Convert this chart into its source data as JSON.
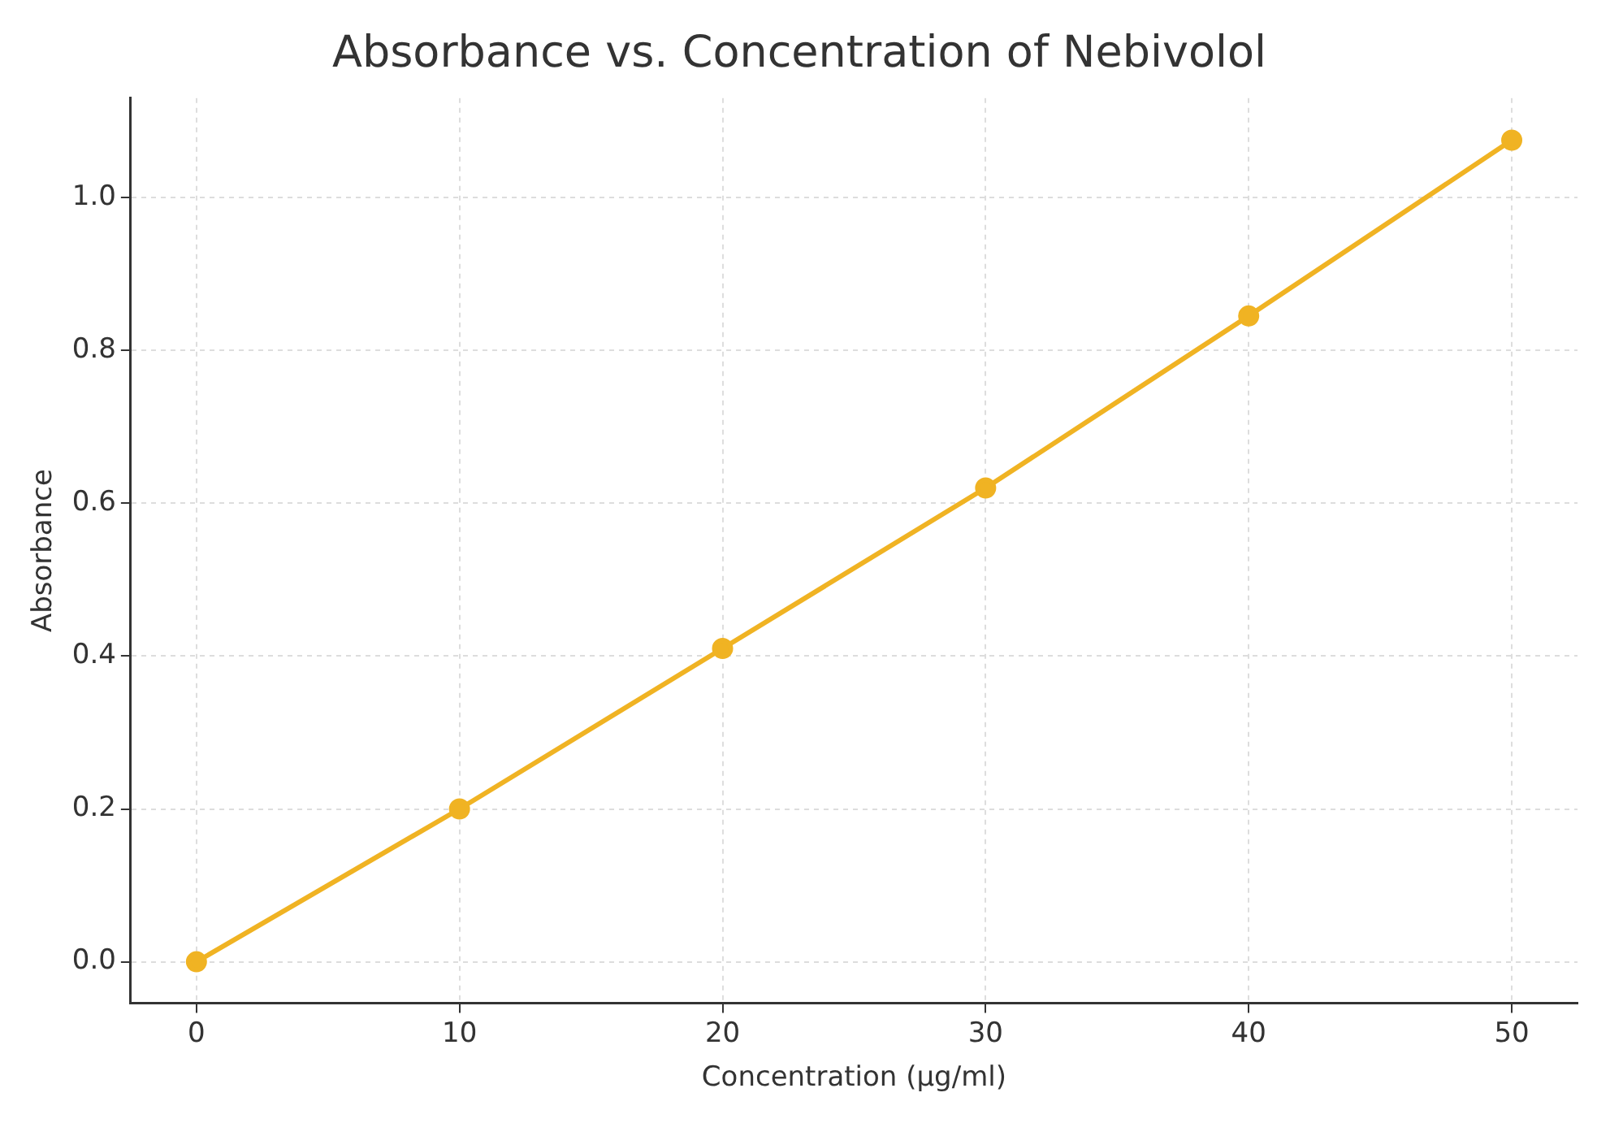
{
  "chart_data": {
    "type": "line",
    "title": "Absorbance vs. Concentration of Nebivolol",
    "xlabel": "Concentration (µg/ml)",
    "ylabel": "Absorbance",
    "x": [
      0,
      10,
      20,
      30,
      40,
      50
    ],
    "series": [
      {
        "color": "#f0b323",
        "values": [
          0,
          0.2,
          0.41,
          0.62,
          0.845,
          1.075
        ]
      }
    ],
    "xlim": [
      -2.5,
      52.5
    ],
    "xticks": [
      0,
      10,
      20,
      30,
      40,
      50
    ],
    "ylim": [
      -0.054,
      1.13
    ],
    "yticks": [
      {
        "value": 0,
        "label": "0.0"
      },
      {
        "value": 0.2,
        "label": "0.2"
      },
      {
        "value": 0.4,
        "label": "0.4"
      },
      {
        "value": 0.6,
        "label": "0.6"
      },
      {
        "value": 0.8,
        "label": "0.8"
      },
      {
        "value": 1,
        "label": "1.0"
      }
    ],
    "grid": true,
    "marker": "circle",
    "line_style": "solid",
    "legend": false
  }
}
